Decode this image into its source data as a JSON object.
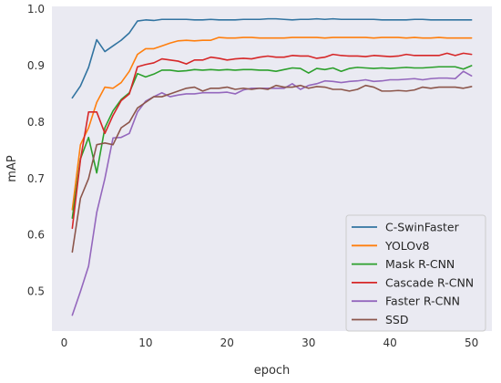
{
  "chart_data": {
    "type": "line",
    "title": "",
    "xlabel": "epoch",
    "ylabel": "mAP",
    "xlim": [
      -1.5,
      52.5
    ],
    "ylim": [
      0.43,
      1.005
    ],
    "xticks": [
      0,
      10,
      20,
      30,
      40,
      50
    ],
    "yticks": [
      0.5,
      0.6,
      0.7,
      0.8,
      0.9,
      1.0
    ],
    "xtick_labels": [
      "0",
      "10",
      "20",
      "30",
      "40",
      "50"
    ],
    "ytick_labels": [
      "0.5",
      "0.6",
      "0.7",
      "0.8",
      "0.9",
      "1.0"
    ],
    "grid": false,
    "background": "#eaeaf2",
    "legend_position": "lower-right",
    "x": [
      1,
      2,
      3,
      4,
      5,
      6,
      7,
      8,
      9,
      10,
      11,
      12,
      13,
      14,
      15,
      16,
      17,
      18,
      19,
      20,
      21,
      22,
      23,
      24,
      25,
      26,
      27,
      28,
      29,
      30,
      31,
      32,
      33,
      34,
      35,
      36,
      37,
      38,
      39,
      40,
      41,
      42,
      43,
      44,
      45,
      46,
      47,
      48,
      49,
      50
    ],
    "series": [
      {
        "name": "C-SwinFaster",
        "color": "#3274a1",
        "values": [
          0.843,
          0.864,
          0.897,
          0.946,
          0.925,
          0.935,
          0.945,
          0.958,
          0.979,
          0.981,
          0.98,
          0.982,
          0.982,
          0.982,
          0.982,
          0.981,
          0.981,
          0.982,
          0.981,
          0.981,
          0.981,
          0.982,
          0.982,
          0.982,
          0.983,
          0.983,
          0.982,
          0.981,
          0.982,
          0.982,
          0.983,
          0.982,
          0.983,
          0.982,
          0.982,
          0.982,
          0.982,
          0.982,
          0.981,
          0.981,
          0.981,
          0.981,
          0.982,
          0.982,
          0.981,
          0.981,
          0.981,
          0.981,
          0.981,
          0.981
        ]
      },
      {
        "name": "YOLOv8",
        "color": "#ff7f0e",
        "values": [
          0.645,
          0.76,
          0.79,
          0.835,
          0.862,
          0.86,
          0.87,
          0.89,
          0.92,
          0.93,
          0.93,
          0.935,
          0.94,
          0.944,
          0.945,
          0.944,
          0.945,
          0.945,
          0.95,
          0.949,
          0.949,
          0.95,
          0.95,
          0.949,
          0.949,
          0.949,
          0.949,
          0.95,
          0.95,
          0.95,
          0.95,
          0.949,
          0.95,
          0.95,
          0.95,
          0.95,
          0.95,
          0.949,
          0.95,
          0.95,
          0.95,
          0.949,
          0.95,
          0.949,
          0.949,
          0.95,
          0.949,
          0.949,
          0.949,
          0.949
        ]
      },
      {
        "name": "Mask R-CNN",
        "color": "#2ca02c",
        "values": [
          0.63,
          0.735,
          0.773,
          0.71,
          0.79,
          0.82,
          0.84,
          0.852,
          0.886,
          0.88,
          0.885,
          0.892,
          0.892,
          0.89,
          0.891,
          0.893,
          0.892,
          0.893,
          0.892,
          0.893,
          0.892,
          0.893,
          0.893,
          0.892,
          0.892,
          0.89,
          0.893,
          0.896,
          0.895,
          0.887,
          0.895,
          0.893,
          0.896,
          0.89,
          0.895,
          0.897,
          0.896,
          0.895,
          0.896,
          0.895,
          0.896,
          0.897,
          0.896,
          0.896,
          0.897,
          0.898,
          0.898,
          0.898,
          0.894,
          0.9
        ]
      },
      {
        "name": "Cascade R-CNN",
        "color": "#d62728",
        "values": [
          0.612,
          0.733,
          0.818,
          0.818,
          0.78,
          0.812,
          0.838,
          0.85,
          0.898,
          0.902,
          0.905,
          0.912,
          0.91,
          0.908,
          0.903,
          0.91,
          0.91,
          0.915,
          0.913,
          0.91,
          0.912,
          0.913,
          0.912,
          0.915,
          0.917,
          0.915,
          0.915,
          0.918,
          0.917,
          0.917,
          0.913,
          0.915,
          0.92,
          0.918,
          0.917,
          0.917,
          0.916,
          0.918,
          0.917,
          0.916,
          0.917,
          0.92,
          0.918,
          0.918,
          0.918,
          0.918,
          0.922,
          0.918,
          0.922,
          0.92
        ]
      },
      {
        "name": "Faster R-CNN",
        "color": "#9467bd",
        "values": [
          0.458,
          0.5,
          0.545,
          0.64,
          0.7,
          0.772,
          0.773,
          0.78,
          0.818,
          0.837,
          0.845,
          0.852,
          0.845,
          0.848,
          0.85,
          0.85,
          0.852,
          0.852,
          0.852,
          0.853,
          0.85,
          0.857,
          0.86,
          0.86,
          0.86,
          0.86,
          0.86,
          0.868,
          0.858,
          0.865,
          0.868,
          0.873,
          0.872,
          0.87,
          0.872,
          0.873,
          0.875,
          0.872,
          0.873,
          0.875,
          0.875,
          0.876,
          0.877,
          0.875,
          0.877,
          0.878,
          0.878,
          0.877,
          0.89,
          0.882
        ]
      },
      {
        "name": "SSD",
        "color": "#8c564b",
        "values": [
          0.57,
          0.665,
          0.7,
          0.76,
          0.763,
          0.76,
          0.79,
          0.8,
          0.825,
          0.835,
          0.845,
          0.845,
          0.85,
          0.855,
          0.86,
          0.862,
          0.855,
          0.86,
          0.86,
          0.862,
          0.858,
          0.86,
          0.858,
          0.86,
          0.858,
          0.865,
          0.862,
          0.862,
          0.865,
          0.86,
          0.863,
          0.862,
          0.858,
          0.858,
          0.855,
          0.858,
          0.865,
          0.862,
          0.855,
          0.855,
          0.856,
          0.855,
          0.857,
          0.862,
          0.86,
          0.862,
          0.862,
          0.862,
          0.86,
          0.863
        ]
      }
    ]
  }
}
